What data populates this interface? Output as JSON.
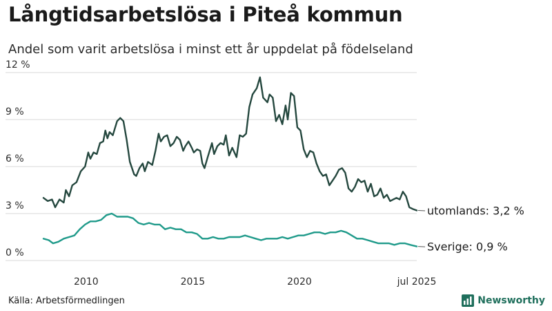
{
  "header": {
    "title": "Långtidsarbetslösa i Piteå kommun",
    "subtitle": "Andel som varit arbetslösa i minst ett år uppdelat på födelseland"
  },
  "footer": {
    "source": "Källa: Arbetsförmedlingen",
    "brand": "Newsworthy",
    "brand_icon": "bar-chart-icon"
  },
  "colors": {
    "foreign": "#24473e",
    "sweden": "#1f9a8a",
    "grid": "#d9d9d9",
    "brand": "#1f6f5c"
  },
  "chart_data": {
    "type": "line",
    "y_tick_labels": [
      "0 %",
      "3 %",
      "6 %",
      "9 %",
      "12 %"
    ],
    "y_ticks": [
      0,
      3,
      6,
      9,
      12
    ],
    "ylim": [
      0,
      12
    ],
    "x_tick_labels": [
      "2010",
      "2015",
      "2020",
      "jul 2025"
    ],
    "x_ticks": [
      2010.0,
      2015.0,
      2020.0,
      2025.5
    ],
    "xlim": [
      2008.0,
      2025.5
    ],
    "grid": true,
    "legend": "end-labels",
    "series": [
      {
        "name": "utomlands",
        "end_label": "utomlands: 3,2 %",
        "points": [
          [
            2008.0,
            4.0
          ],
          [
            2008.2,
            3.8
          ],
          [
            2008.4,
            3.9
          ],
          [
            2008.55,
            3.4
          ],
          [
            2008.75,
            3.9
          ],
          [
            2008.95,
            3.7
          ],
          [
            2009.05,
            4.5
          ],
          [
            2009.2,
            4.1
          ],
          [
            2009.35,
            4.8
          ],
          [
            2009.55,
            5.0
          ],
          [
            2009.75,
            5.7
          ],
          [
            2009.95,
            6.0
          ],
          [
            2010.1,
            6.9
          ],
          [
            2010.2,
            6.5
          ],
          [
            2010.35,
            6.9
          ],
          [
            2010.5,
            6.8
          ],
          [
            2010.65,
            7.5
          ],
          [
            2010.8,
            7.6
          ],
          [
            2010.9,
            8.3
          ],
          [
            2011.0,
            7.8
          ],
          [
            2011.1,
            8.2
          ],
          [
            2011.25,
            8.0
          ],
          [
            2011.45,
            8.9
          ],
          [
            2011.6,
            9.1
          ],
          [
            2011.75,
            8.9
          ],
          [
            2011.9,
            7.7
          ],
          [
            2012.05,
            6.3
          ],
          [
            2012.25,
            5.5
          ],
          [
            2012.35,
            5.4
          ],
          [
            2012.5,
            5.9
          ],
          [
            2012.65,
            6.2
          ],
          [
            2012.75,
            5.7
          ],
          [
            2012.9,
            6.3
          ],
          [
            2013.1,
            6.1
          ],
          [
            2013.25,
            7.0
          ],
          [
            2013.4,
            8.1
          ],
          [
            2013.5,
            7.6
          ],
          [
            2013.65,
            7.9
          ],
          [
            2013.8,
            8.0
          ],
          [
            2013.95,
            7.3
          ],
          [
            2014.1,
            7.5
          ],
          [
            2014.25,
            7.9
          ],
          [
            2014.4,
            7.7
          ],
          [
            2014.55,
            7.0
          ],
          [
            2014.65,
            7.3
          ],
          [
            2014.8,
            7.6
          ],
          [
            2014.95,
            7.2
          ],
          [
            2015.05,
            6.9
          ],
          [
            2015.2,
            7.1
          ],
          [
            2015.35,
            7.0
          ],
          [
            2015.45,
            6.2
          ],
          [
            2015.55,
            5.9
          ],
          [
            2015.7,
            6.6
          ],
          [
            2015.9,
            7.5
          ],
          [
            2016.0,
            6.8
          ],
          [
            2016.15,
            7.3
          ],
          [
            2016.3,
            7.5
          ],
          [
            2016.45,
            7.4
          ],
          [
            2016.55,
            8.0
          ],
          [
            2016.7,
            6.7
          ],
          [
            2016.85,
            7.2
          ],
          [
            2017.05,
            6.6
          ],
          [
            2017.2,
            8.0
          ],
          [
            2017.35,
            7.9
          ],
          [
            2017.5,
            8.1
          ],
          [
            2017.65,
            9.8
          ],
          [
            2017.8,
            10.6
          ],
          [
            2018.0,
            11.0
          ],
          [
            2018.15,
            11.7
          ],
          [
            2018.3,
            10.4
          ],
          [
            2018.5,
            10.1
          ],
          [
            2018.6,
            10.6
          ],
          [
            2018.75,
            10.4
          ],
          [
            2018.9,
            8.9
          ],
          [
            2019.05,
            9.3
          ],
          [
            2019.2,
            8.7
          ],
          [
            2019.35,
            9.9
          ],
          [
            2019.45,
            9.0
          ],
          [
            2019.6,
            10.7
          ],
          [
            2019.75,
            10.5
          ],
          [
            2019.9,
            8.5
          ],
          [
            2020.05,
            8.3
          ],
          [
            2020.2,
            7.1
          ],
          [
            2020.35,
            6.6
          ],
          [
            2020.5,
            7.0
          ],
          [
            2020.65,
            6.9
          ],
          [
            2020.8,
            6.2
          ],
          [
            2020.95,
            5.7
          ],
          [
            2021.1,
            5.4
          ],
          [
            2021.25,
            5.5
          ],
          [
            2021.4,
            4.8
          ],
          [
            2021.55,
            5.1
          ],
          [
            2021.7,
            5.4
          ],
          [
            2021.85,
            5.8
          ],
          [
            2022.0,
            5.9
          ],
          [
            2022.15,
            5.6
          ],
          [
            2022.3,
            4.6
          ],
          [
            2022.45,
            4.4
          ],
          [
            2022.6,
            4.7
          ],
          [
            2022.75,
            5.2
          ],
          [
            2022.9,
            5.0
          ],
          [
            2023.05,
            5.1
          ],
          [
            2023.2,
            4.4
          ],
          [
            2023.35,
            4.9
          ],
          [
            2023.5,
            4.1
          ],
          [
            2023.65,
            4.2
          ],
          [
            2023.8,
            4.6
          ],
          [
            2023.95,
            4.0
          ],
          [
            2024.1,
            4.2
          ],
          [
            2024.25,
            3.8
          ],
          [
            2024.4,
            3.9
          ],
          [
            2024.55,
            4.0
          ],
          [
            2024.7,
            3.9
          ],
          [
            2024.85,
            4.4
          ],
          [
            2025.0,
            4.1
          ],
          [
            2025.15,
            3.4
          ],
          [
            2025.3,
            3.3
          ],
          [
            2025.5,
            3.2
          ]
        ]
      },
      {
        "name": "Sverige",
        "end_label": "Sverige: 0,9 %",
        "points": [
          [
            2008.0,
            1.4
          ],
          [
            2008.25,
            1.3
          ],
          [
            2008.45,
            1.1
          ],
          [
            2008.7,
            1.2
          ],
          [
            2008.95,
            1.4
          ],
          [
            2009.2,
            1.5
          ],
          [
            2009.45,
            1.6
          ],
          [
            2009.7,
            2.0
          ],
          [
            2009.95,
            2.3
          ],
          [
            2010.2,
            2.5
          ],
          [
            2010.45,
            2.5
          ],
          [
            2010.7,
            2.6
          ],
          [
            2010.95,
            2.9
          ],
          [
            2011.2,
            3.0
          ],
          [
            2011.45,
            2.8
          ],
          [
            2011.7,
            2.8
          ],
          [
            2011.95,
            2.8
          ],
          [
            2012.2,
            2.7
          ],
          [
            2012.45,
            2.4
          ],
          [
            2012.7,
            2.3
          ],
          [
            2012.95,
            2.4
          ],
          [
            2013.2,
            2.3
          ],
          [
            2013.45,
            2.3
          ],
          [
            2013.7,
            2.0
          ],
          [
            2013.95,
            2.1
          ],
          [
            2014.2,
            2.0
          ],
          [
            2014.45,
            2.0
          ],
          [
            2014.7,
            1.8
          ],
          [
            2014.95,
            1.8
          ],
          [
            2015.2,
            1.7
          ],
          [
            2015.45,
            1.4
          ],
          [
            2015.7,
            1.4
          ],
          [
            2015.95,
            1.5
          ],
          [
            2016.2,
            1.4
          ],
          [
            2016.45,
            1.4
          ],
          [
            2016.7,
            1.5
          ],
          [
            2016.95,
            1.5
          ],
          [
            2017.2,
            1.5
          ],
          [
            2017.45,
            1.6
          ],
          [
            2017.7,
            1.5
          ],
          [
            2017.95,
            1.4
          ],
          [
            2018.2,
            1.3
          ],
          [
            2018.45,
            1.4
          ],
          [
            2018.7,
            1.4
          ],
          [
            2018.95,
            1.4
          ],
          [
            2019.2,
            1.5
          ],
          [
            2019.45,
            1.4
          ],
          [
            2019.7,
            1.5
          ],
          [
            2019.95,
            1.6
          ],
          [
            2020.2,
            1.6
          ],
          [
            2020.45,
            1.7
          ],
          [
            2020.7,
            1.8
          ],
          [
            2020.95,
            1.8
          ],
          [
            2021.2,
            1.7
          ],
          [
            2021.45,
            1.8
          ],
          [
            2021.7,
            1.8
          ],
          [
            2021.95,
            1.9
          ],
          [
            2022.2,
            1.8
          ],
          [
            2022.45,
            1.6
          ],
          [
            2022.7,
            1.4
          ],
          [
            2022.95,
            1.4
          ],
          [
            2023.2,
            1.3
          ],
          [
            2023.45,
            1.2
          ],
          [
            2023.7,
            1.1
          ],
          [
            2023.95,
            1.1
          ],
          [
            2024.2,
            1.1
          ],
          [
            2024.45,
            1.0
          ],
          [
            2024.7,
            1.1
          ],
          [
            2024.95,
            1.1
          ],
          [
            2025.2,
            1.0
          ],
          [
            2025.5,
            0.9
          ]
        ]
      }
    ]
  }
}
